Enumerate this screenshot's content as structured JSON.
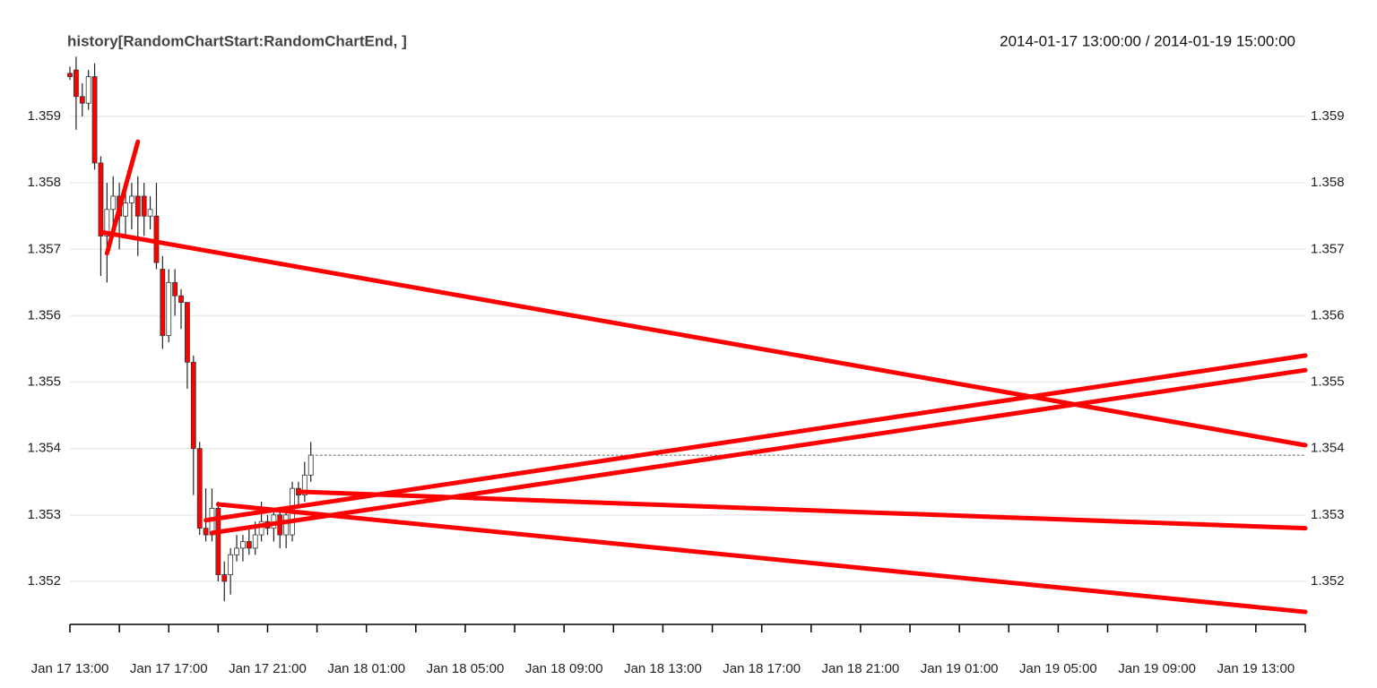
{
  "chart_data": {
    "type": "candlestick",
    "title": "history[RandomChartStart:RandomChartEnd, ]",
    "date_range": "2014-01-17 13:00:00 / 2014-01-19 15:00:00",
    "x": [
      "2014-01-17 13:00",
      "2014-01-17 13:15",
      "2014-01-17 13:30",
      "2014-01-17 13:45",
      "2014-01-17 14:00",
      "2014-01-17 14:15",
      "2014-01-17 14:30",
      "2014-01-17 14:45",
      "2014-01-17 15:00",
      "2014-01-17 15:15",
      "2014-01-17 15:30",
      "2014-01-17 15:45",
      "2014-01-17 16:00",
      "2014-01-17 16:15",
      "2014-01-17 16:30",
      "2014-01-17 16:45",
      "2014-01-17 17:00",
      "2014-01-17 17:15",
      "2014-01-17 17:30",
      "2014-01-17 17:45",
      "2014-01-17 18:00",
      "2014-01-17 18:15",
      "2014-01-17 18:30",
      "2014-01-17 18:45",
      "2014-01-17 19:00",
      "2014-01-17 19:15",
      "2014-01-17 19:30",
      "2014-01-17 19:45",
      "2014-01-17 20:00",
      "2014-01-17 20:15",
      "2014-01-17 20:30",
      "2014-01-17 20:45",
      "2014-01-17 21:00",
      "2014-01-17 21:15",
      "2014-01-17 21:30",
      "2014-01-17 21:45",
      "2014-01-17 22:00",
      "2014-01-17 22:15",
      "2014-01-17 22:30",
      "2014-01-17 22:45"
    ],
    "open": [
      1.35965,
      1.3597,
      1.3593,
      1.3592,
      1.3596,
      1.3583,
      1.3572,
      1.3576,
      1.3578,
      1.3575,
      1.3577,
      1.3578,
      1.3578,
      1.3575,
      1.3575,
      1.3567,
      1.3557,
      1.3565,
      1.3563,
      1.3562,
      1.3553,
      1.354,
      1.3528,
      1.3527,
      1.3531,
      1.3521,
      1.3521,
      1.3524,
      1.3525,
      1.3526,
      1.3525,
      1.3527,
      1.3529,
      1.3528,
      1.353,
      1.3527,
      1.3527,
      1.3534,
      1.3533,
      1.3536
    ],
    "high": [
      1.35975,
      1.3599,
      1.3595,
      1.3597,
      1.3598,
      1.3584,
      1.358,
      1.3581,
      1.358,
      1.358,
      1.358,
      1.3581,
      1.358,
      1.3578,
      1.358,
      1.3569,
      1.3567,
      1.3567,
      1.3564,
      1.3562,
      1.3554,
      1.3541,
      1.3534,
      1.3534,
      1.3532,
      1.3523,
      1.3525,
      1.3527,
      1.3527,
      1.3528,
      1.3529,
      1.3532,
      1.353,
      1.3531,
      1.3531,
      1.3531,
      1.3535,
      1.3535,
      1.3538,
      1.3541
    ],
    "low": [
      1.35955,
      1.3588,
      1.359,
      1.3591,
      1.3582,
      1.3566,
      1.3565,
      1.3572,
      1.357,
      1.3572,
      1.3573,
      1.3569,
      1.3572,
      1.3573,
      1.3567,
      1.3555,
      1.3556,
      1.356,
      1.3558,
      1.3549,
      1.3533,
      1.3527,
      1.3526,
      1.3526,
      1.352,
      1.3517,
      1.3518,
      1.3523,
      1.3523,
      1.3524,
      1.3524,
      1.3526,
      1.3527,
      1.3526,
      1.3525,
      1.3525,
      1.3526,
      1.3531,
      1.3532,
      1.3535
    ],
    "close": [
      1.3596,
      1.3593,
      1.3592,
      1.3596,
      1.3583,
      1.3572,
      1.3576,
      1.3578,
      1.3575,
      1.3577,
      1.3578,
      1.3575,
      1.3575,
      1.3576,
      1.3568,
      1.3557,
      1.3565,
      1.3563,
      1.3562,
      1.3553,
      1.354,
      1.3528,
      1.3527,
      1.3531,
      1.3521,
      1.352,
      1.3524,
      1.3525,
      1.3526,
      1.3525,
      1.3527,
      1.3529,
      1.3528,
      1.353,
      1.3527,
      1.353,
      1.3534,
      1.3533,
      1.3536,
      1.3539
    ],
    "up_color": "#ffffff",
    "down_color": "#ff0000",
    "lines": [
      {
        "x": [
          "2014-01-17 14:15",
          "2014-01-19 15:00"
        ],
        "y": [
          1.35726,
          1.35405
        ]
      },
      {
        "x": [
          "2014-01-17 14:30",
          "2014-01-17 15:45"
        ],
        "y": [
          1.35694,
          1.35862
        ]
      },
      {
        "x": [
          "2014-01-17 18:30",
          "2014-01-19 15:00"
        ],
        "y": [
          1.35292,
          1.3554
        ]
      },
      {
        "x": [
          "2014-01-17 18:45",
          "2014-01-19 15:00"
        ],
        "y": [
          1.35273,
          1.35518
        ]
      },
      {
        "x": [
          "2014-01-17 19:00",
          "2014-01-19 15:00"
        ],
        "y": [
          1.35316,
          1.35154
        ]
      },
      {
        "x": [
          "2014-01-17 22:15",
          "2014-01-19 15:00"
        ],
        "y": [
          1.35335,
          1.3528
        ]
      }
    ],
    "line_color": "#ff0000",
    "xlim": [
      "2014-01-17 13:00",
      "2014-01-19 15:00"
    ],
    "xticks": [
      {
        "value": "2014-01-17 13:00",
        "label": "Jan 17 13:00"
      },
      {
        "value": "2014-01-17 17:00",
        "label": "Jan 17 17:00"
      },
      {
        "value": "2014-01-17 21:00",
        "label": "Jan 17 21:00"
      },
      {
        "value": "2014-01-18 01:00",
        "label": "Jan 18 01:00"
      },
      {
        "value": "2014-01-18 05:00",
        "label": "Jan 18 05:00"
      },
      {
        "value": "2014-01-18 09:00",
        "label": "Jan 18 09:00"
      },
      {
        "value": "2014-01-18 13:00",
        "label": "Jan 18 13:00"
      },
      {
        "value": "2014-01-18 17:00",
        "label": "Jan 18 17:00"
      },
      {
        "value": "2014-01-18 21:00",
        "label": "Jan 18 21:00"
      },
      {
        "value": "2014-01-19 01:00",
        "label": "Jan 19 01:00"
      },
      {
        "value": "2014-01-19 05:00",
        "label": "Jan 19 05:00"
      },
      {
        "value": "2014-01-19 09:00",
        "label": "Jan 19 09:00"
      },
      {
        "value": "2014-01-19 13:00",
        "label": "Jan 19 13:00"
      }
    ],
    "xminorticks": [
      "2014-01-17 15:00",
      "2014-01-17 19:00",
      "2014-01-17 23:00",
      "2014-01-18 03:00",
      "2014-01-18 07:00",
      "2014-01-18 11:00",
      "2014-01-18 15:00",
      "2014-01-18 19:00",
      "2014-01-18 23:00",
      "2014-01-19 03:00",
      "2014-01-19 07:00",
      "2014-01-19 11:00",
      "2014-01-19 15:00"
    ],
    "ylim": [
      1.3517,
      1.3599
    ],
    "yticks": [
      1.352,
      1.353,
      1.354,
      1.355,
      1.356,
      1.357,
      1.358,
      1.359
    ],
    "grid": true
  }
}
